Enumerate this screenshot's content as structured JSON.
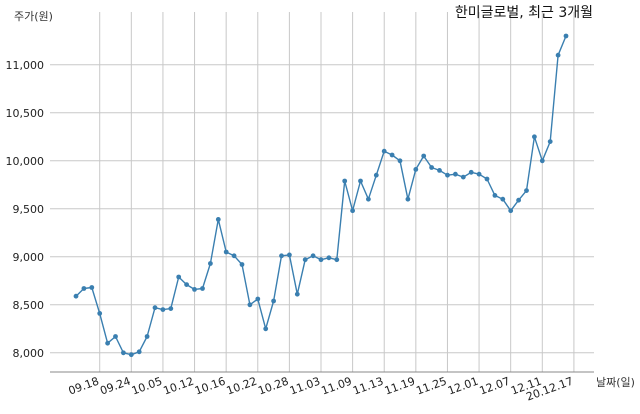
{
  "chart_data": {
    "type": "line",
    "title": "한미글로벌, 최근 3개월",
    "ylabel": "주가(원)",
    "xlabel": "날짜(일)",
    "ylim": [
      7800,
      11550
    ],
    "y_ticks": [
      8000,
      8500,
      9000,
      9500,
      10000,
      10500,
      11000
    ],
    "y_tick_labels": [
      "8,000",
      "8,500",
      "9,000",
      "9,500",
      "10,000",
      "10,500",
      "11,000"
    ],
    "x_tick_labels": [
      "09.18",
      "09.24",
      "10.05",
      "10.12",
      "10.16",
      "10.22",
      "10.28",
      "11.03",
      "11.09",
      "11.13",
      "11.19",
      "11.25",
      "12.01",
      "12.07",
      "12.11",
      "20.12.17"
    ],
    "x_tick_index": [
      3,
      7,
      11,
      15,
      19,
      23,
      27,
      31,
      35,
      39,
      43,
      47,
      51,
      55,
      59,
      63
    ],
    "line_color": "#3a7fb0",
    "grid": true,
    "series": [
      {
        "values": [
          8590,
          8670,
          8680,
          8410,
          8100,
          8170,
          8000,
          7980,
          8010,
          8170,
          8470,
          8450,
          8460,
          8790,
          8710,
          8660,
          8670,
          8930,
          9390,
          9050,
          9010,
          8920,
          8500,
          8560,
          8250,
          8540,
          9010,
          9020,
          8610,
          8970,
          9010,
          8970,
          8990,
          8970,
          9790,
          9480,
          9790,
          9600,
          9850,
          10100,
          10060,
          10000,
          9600,
          9910,
          10050,
          9930,
          9900,
          9850,
          9860,
          9830,
          9880,
          9860,
          9810,
          9640,
          9600,
          9480,
          9590,
          9690,
          10250,
          10000,
          10200,
          11100,
          11300
        ]
      }
    ]
  }
}
